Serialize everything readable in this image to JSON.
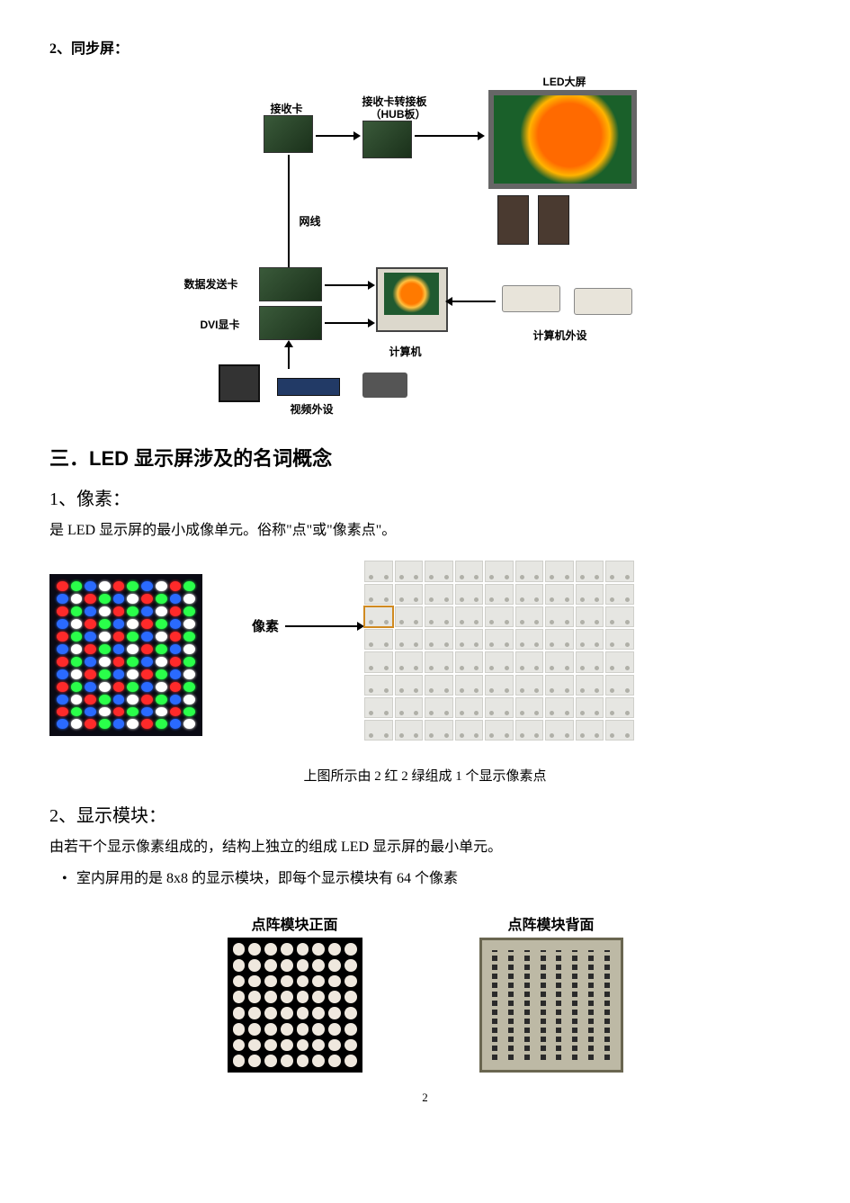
{
  "top_heading": "2、同步屏：",
  "fig1": {
    "led_title": "LED大屏",
    "recv_card": "接收卡",
    "hub_top": "接收卡转接板",
    "hub_sub": "（HUB板）",
    "netline": "网线",
    "send_card": "数据发送卡",
    "dvi_card": "DVI显卡",
    "computer": "计算机",
    "periph": "计算机外设",
    "video_periph": "视频外设",
    "colors": {
      "board": "#2c4a2c",
      "screen_frame": "#666666",
      "flower_orange": "#ff6a00",
      "flower_bg": "#1a602a"
    }
  },
  "section3_title": "三．LED 显示屏涉及的名词概念",
  "sec3_1_title": "1、像素：",
  "sec3_1_text": "是 LED 显示屏的最小成像单元。俗称\"点\"或\"像素点\"。",
  "fig2": {
    "label": "像素",
    "rgb_rows": 12,
    "rgb_cols": 10,
    "rgb_colors": [
      "#ff2a2a",
      "#2aff4a",
      "#2a6aff",
      "#ffffff"
    ],
    "rgb_bg": "#0a0a14",
    "smd_rows": 8,
    "smd_cols": 9,
    "smd_cell_color": "#e6e6e2",
    "smd_highlight_row": 2,
    "smd_highlight_col": 0,
    "highlight_color": "#d08a20"
  },
  "fig2_caption": "上图所示由 2 红 2 绿组成 1 个显示像素点",
  "sec3_2_title": "2、显示模块：",
  "sec3_2_text": "由若干个显示像素组成的，结构上独立的组成 LED 显示屏的最小单元。",
  "sec3_2_bullet": "室内屏用的是 8x8 的显示模块，即每个显示模块有 64 个像素",
  "fig3": {
    "front_label": "点阵模块正面",
    "back_label": "点阵模块背面",
    "grid": 8,
    "dot_color": "#efe8de",
    "bg_color": "#000000",
    "back_bg": "#bdb9a5",
    "back_pins": 8
  },
  "page_number": "2"
}
